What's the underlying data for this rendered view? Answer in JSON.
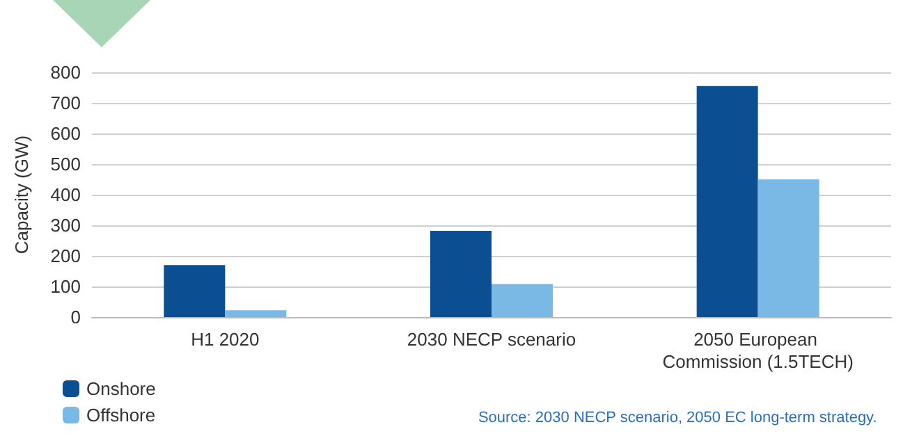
{
  "chart_data": {
    "type": "bar",
    "ylabel": "Capacity (GW)",
    "categories": [
      "H1 2020",
      "2030 NECP scenario",
      "2050 European Commission (1.5TECH)"
    ],
    "series": [
      {
        "name": "Onshore",
        "color": "#0b4f92",
        "values": [
          170,
          282,
          755
        ]
      },
      {
        "name": "Offshore",
        "color": "#7ab8e6",
        "values": [
          22,
          108,
          450
        ]
      }
    ],
    "ylim": [
      0,
      800
    ],
    "yticks": [
      0,
      100,
      200,
      300,
      400,
      500,
      600,
      700,
      800
    ],
    "grid": "y",
    "legend": "bottom left",
    "annotations": [
      "Source: 2030 NECP scenario, 2050 EC long-term strategy."
    ]
  }
}
